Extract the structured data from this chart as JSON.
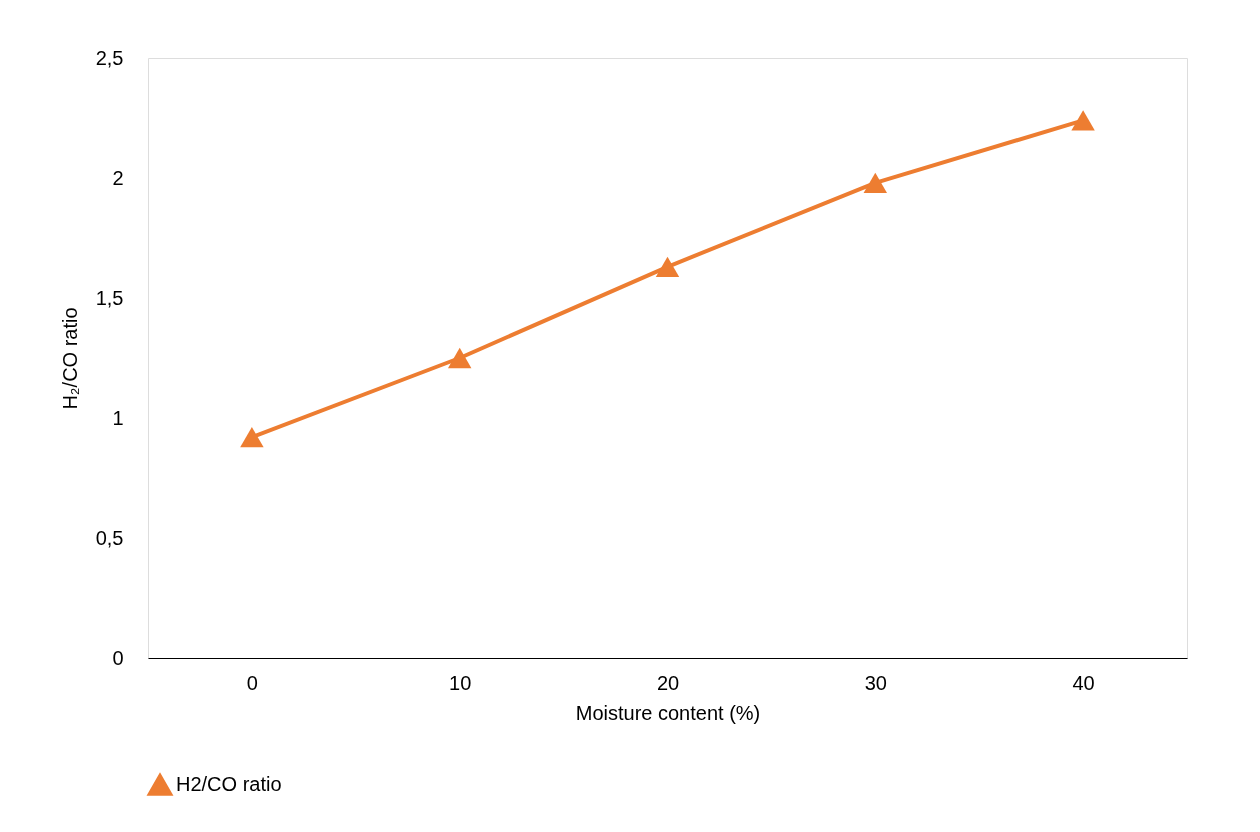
{
  "chart_data": {
    "type": "line",
    "xlabel": "Moisture content (%)",
    "ylabel": "H₂/CO ratio",
    "categories": [
      "0",
      "10",
      "20",
      "30",
      "40"
    ],
    "series": [
      {
        "name": "H2/CO ratio",
        "color": "#ed7d31",
        "values": [
          0.92,
          1.25,
          1.63,
          1.98,
          2.24
        ]
      }
    ],
    "ylim": [
      0,
      2.5
    ],
    "yticks": [
      0,
      {
        "value": 0.5,
        "label": "0,5"
      },
      1,
      {
        "value": 1.5,
        "label": "1,5"
      },
      2,
      {
        "value": 2.5,
        "label": "2,5"
      }
    ],
    "marker": "triangle",
    "legend": "bottom"
  }
}
